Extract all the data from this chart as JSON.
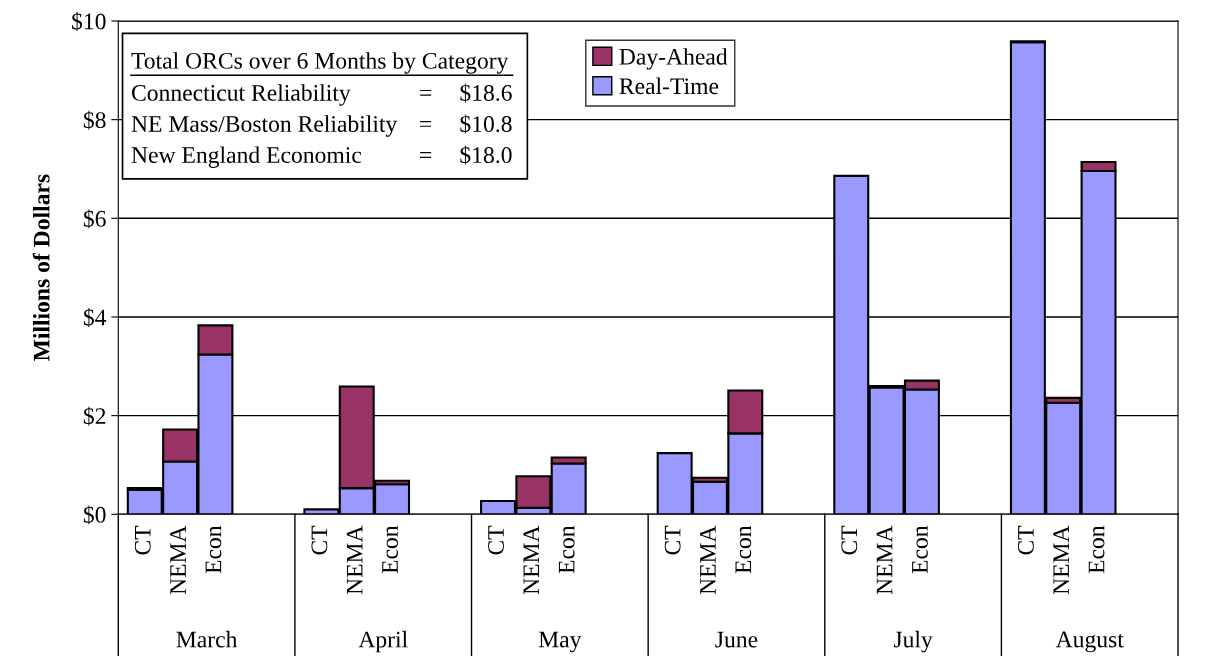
{
  "chart_data": {
    "type": "bar",
    "stacked": true,
    "ylabel": "Millions of Dollars",
    "categories": [
      "CT",
      "NEMA",
      "Econ",
      null,
      null,
      "CT",
      "NEMA",
      "Econ",
      null,
      null,
      "CT",
      "NEMA",
      "Econ",
      null,
      null,
      "CT",
      "NEMA",
      "Econ",
      null,
      null,
      "CT",
      "NEMA",
      "Econ",
      null,
      null,
      "CT",
      "NEMA",
      "Econ",
      null,
      null
    ],
    "series": [
      {
        "name": "Real-Time",
        "color": "#9999ff",
        "values": [
          0.5,
          1.07,
          3.24,
          null,
          null,
          0.1,
          0.53,
          0.61,
          null,
          null,
          0.27,
          0.13,
          1.03,
          null,
          null,
          1.24,
          0.66,
          1.64,
          null,
          null,
          6.86,
          2.57,
          2.53,
          null,
          null,
          9.57,
          2.26,
          6.96,
          null,
          null
        ]
      },
      {
        "name": "Day-Ahead",
        "color": "#993366",
        "values": [
          0.03,
          0.65,
          0.59,
          null,
          null,
          null,
          2.06,
          0.07,
          null,
          null,
          null,
          0.64,
          0.12,
          null,
          null,
          null,
          0.08,
          0.87,
          null,
          null,
          null,
          0.03,
          0.18,
          null,
          null,
          0.02,
          0.1,
          0.18,
          null,
          null
        ]
      }
    ],
    "ylim": [
      0,
      10
    ],
    "yticks": [
      {
        "value": 0,
        "label": "$0"
      },
      {
        "value": 2,
        "label": "$2"
      },
      {
        "value": 4,
        "label": "$4"
      },
      {
        "value": 6,
        "label": "$6"
      },
      {
        "value": 8,
        "label": "$8"
      },
      {
        "value": 10,
        "label": "$10"
      }
    ],
    "grid": "y",
    "legend": "top",
    "annotations": [
      "Total ORCs over 6 Months by Category",
      "Connecticut Reliability = $18.6",
      "NE Mass/Boston Reliability = $10.8",
      "New England Economic = $18.0",
      "March",
      "April",
      "May",
      "June",
      "July",
      "August"
    ]
  }
}
